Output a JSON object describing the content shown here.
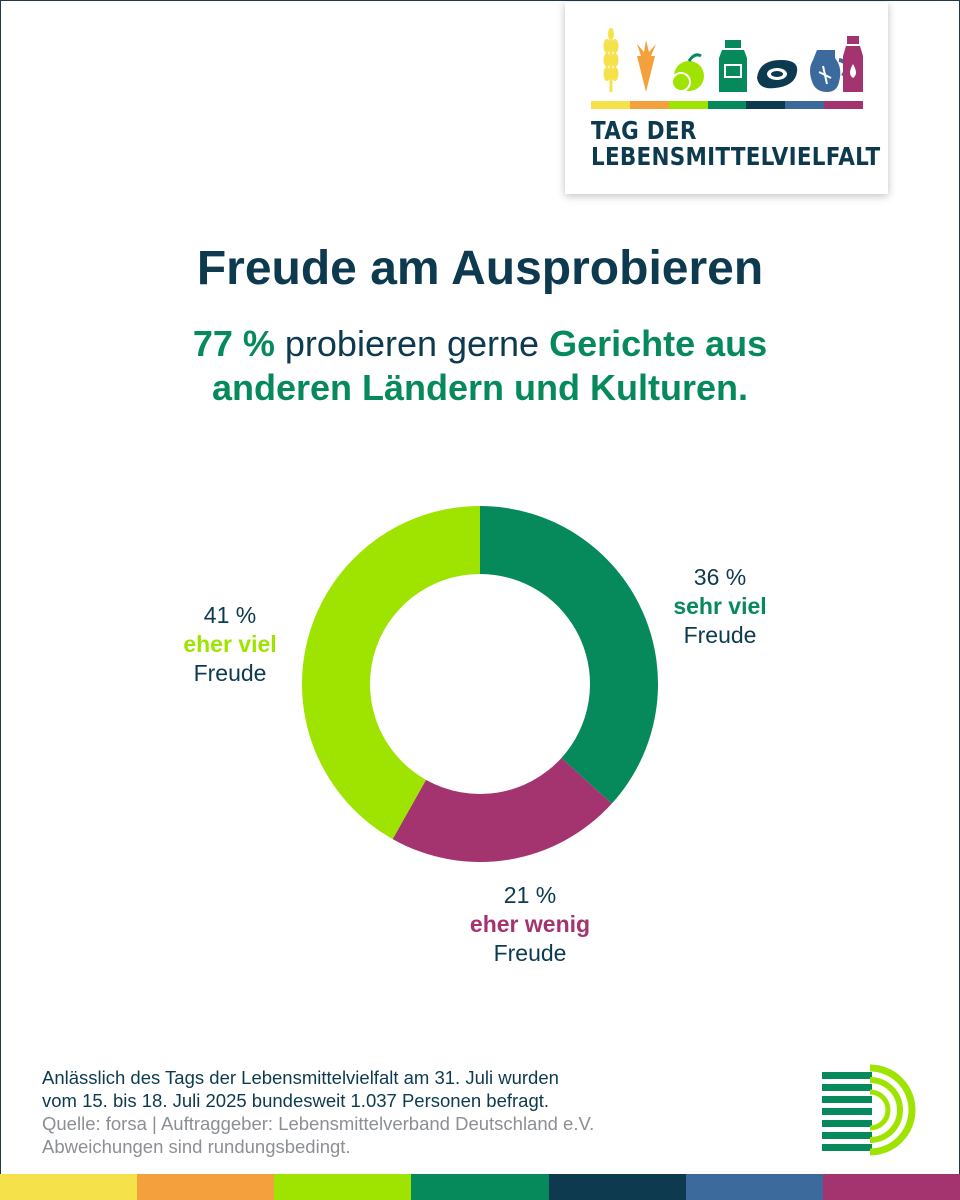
{
  "logo": {
    "line1": "TAG DER",
    "line2": "LEBENSMITTELVIELFALT",
    "stripe_colors": [
      "#f5e14a",
      "#f4a03c",
      "#9ee400",
      "#078a5b",
      "#0d3a4e",
      "#3d6a9c",
      "#a3346f"
    ],
    "icons": [
      "wheat-icon",
      "carrot-icon",
      "fruit-icon",
      "milk-bottle-icon",
      "steak-icon",
      "jug-icon",
      "drink-bottle-icon"
    ]
  },
  "title": "Freude am Ausprobieren",
  "subtitle": {
    "part1": "77 %",
    "part2": " probieren gerne ",
    "part3": "Gerichte aus anderen Ländern und Kulturen."
  },
  "chart_data": {
    "type": "pie",
    "variant": "donut",
    "slices": [
      {
        "label": "sehr viel",
        "suffix": "Freude",
        "value": 36,
        "value_label": "36 %",
        "color": "#078a5b"
      },
      {
        "label": "eher wenig",
        "suffix": "Freude",
        "value": 21,
        "value_label": "21 %",
        "color": "#a3346f"
      },
      {
        "label": "eher viel",
        "suffix": "Freude",
        "value": 41,
        "value_label": "41 %",
        "color": "#9ee400"
      }
    ],
    "start": "12 o'clock, clockwise"
  },
  "footer": {
    "line1": "Anlässlich des Tags der Lebensmittelvielfalt am 31. Juli wurden",
    "line2": "vom 15. bis 18. Juli 2025 bundesweit 1.037 Personen befragt.",
    "source": "Quelle: forsa | Auftraggeber: Lebensmittelverband Deutschland e.V.",
    "rounding": "Abweichungen sind rundungsbedingt."
  },
  "bottom_bar_colors": [
    "#f5e14a",
    "#f4a03c",
    "#9ee400",
    "#078a5b",
    "#0d3a4e",
    "#3d6a9c",
    "#a3346f"
  ],
  "colors": {
    "navy": "#0d3a4e",
    "green": "#078a5b",
    "lime": "#9ee400",
    "magenta": "#a3346f",
    "grey": "#8c8f93"
  }
}
